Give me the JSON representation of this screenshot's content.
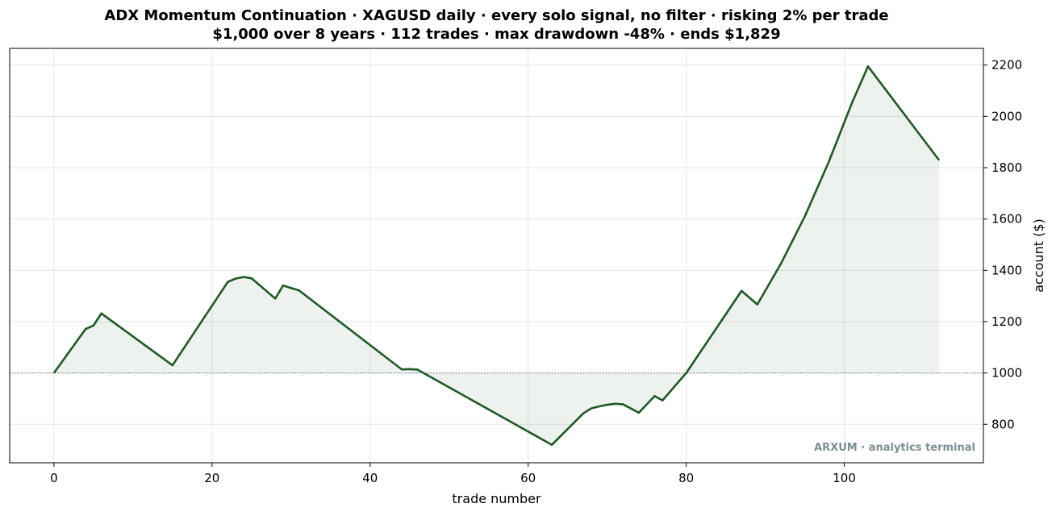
{
  "title_line1": "ADX Momentum Continuation · XAGUSD daily · every solo signal, no filter · risking 2% per trade",
  "title_line2": "$1,000 over 8 years · 112 trades · max drawdown -48% · ends $1,829",
  "watermark": "ARXUM · analytics terminal",
  "colors": {
    "line": "#1e5a24",
    "fill": "#1e5a24",
    "baseline": "#7f8c99",
    "grid": "#e6e6e6"
  },
  "chart_data": {
    "type": "area",
    "xlabel": "trade number",
    "ylabel": "account ($)",
    "xlim": [
      -5.6,
      117.6
    ],
    "ylim": [
      650,
      2265
    ],
    "x_ticks": [
      0,
      20,
      40,
      60,
      80,
      100
    ],
    "y_ticks": [
      800,
      1000,
      1200,
      1400,
      1600,
      1800,
      2000,
      2200
    ],
    "y_axis_side": "right",
    "grid": true,
    "baseline": 1000,
    "points": [
      [
        0,
        1000
      ],
      [
        4,
        1171
      ],
      [
        5,
        1185
      ],
      [
        6,
        1232
      ],
      [
        15,
        1030
      ],
      [
        22,
        1355
      ],
      [
        23,
        1368
      ],
      [
        24,
        1374
      ],
      [
        25,
        1369
      ],
      [
        28,
        1290
      ],
      [
        29,
        1341
      ],
      [
        30,
        1331
      ],
      [
        31,
        1322
      ],
      [
        44,
        1014
      ],
      [
        45,
        1015
      ],
      [
        46,
        1013
      ],
      [
        63,
        720
      ],
      [
        67,
        843
      ],
      [
        68,
        862
      ],
      [
        69,
        870
      ],
      [
        70,
        876
      ],
      [
        71,
        880
      ],
      [
        72,
        878
      ],
      [
        74,
        845
      ],
      [
        76,
        910
      ],
      [
        77,
        893
      ],
      [
        80,
        1000
      ],
      [
        87,
        1320
      ],
      [
        89,
        1267
      ],
      [
        92,
        1427
      ],
      [
        95,
        1610
      ],
      [
        98,
        1820
      ],
      [
        101,
        2055
      ],
      [
        103,
        2195
      ],
      [
        112,
        1829
      ]
    ]
  }
}
